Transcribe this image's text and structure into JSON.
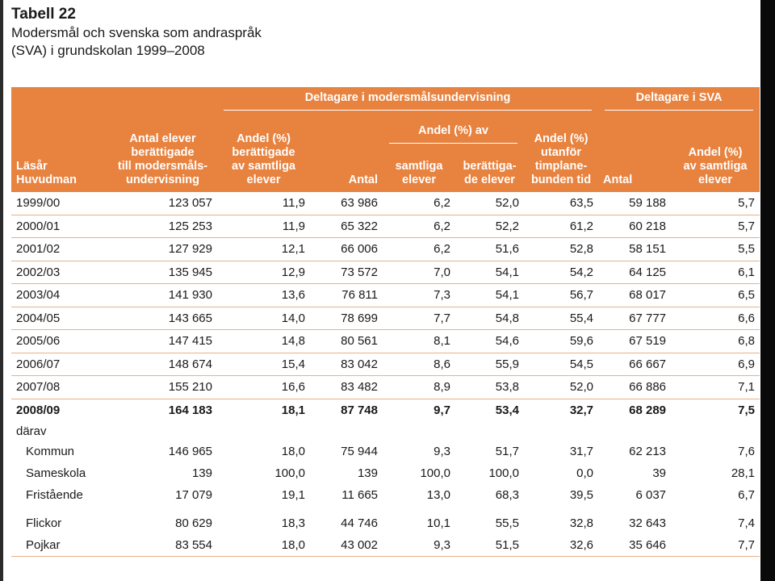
{
  "title": {
    "table_number": "Tabell 22",
    "line1": "Modersmål och svenska som andraspråk",
    "line2": "(SVA) i grundskolan 1999–2008"
  },
  "header": {
    "group_modersmal": "Deltagare i modersmålsundervisning",
    "group_sva": "Deltagare i SVA",
    "col_lasar": [
      "Läsår",
      "Huvudman"
    ],
    "col_antal_elever": [
      "Antal elever",
      "berättigade",
      "till modersmåls-",
      "undervisning"
    ],
    "col_andel_berattigade": [
      "Andel (%)",
      "berättigade",
      "av samtliga",
      "elever"
    ],
    "col_antal": "Antal",
    "sub_group_andel": "Andel (%) av",
    "col_samtliga": [
      "samtliga",
      "elever"
    ],
    "col_berattigade_elever": [
      "berättiga-",
      "de elever"
    ],
    "col_utanfor": [
      "Andel (%)",
      "utanför",
      "timplane-",
      "bunden tid"
    ],
    "col_sva_antal": "Antal",
    "col_sva_andel": [
      "Andel (%)",
      "av samtliga",
      "elever"
    ]
  },
  "rows": [
    [
      "1999/00",
      "123 057",
      "11,9",
      "63 986",
      "6,2",
      "52,0",
      "63,5",
      "59 188",
      "5,7"
    ],
    [
      "2000/01",
      "125 253",
      "11,9",
      "65 322",
      "6,2",
      "52,2",
      "61,2",
      "60 218",
      "5,7"
    ],
    [
      "2001/02",
      "127 929",
      "12,1",
      "66 006",
      "6,2",
      "51,6",
      "52,8",
      "58 151",
      "5,5"
    ],
    [
      "2002/03",
      "135 945",
      "12,9",
      "73 572",
      "7,0",
      "54,1",
      "54,2",
      "64 125",
      "6,1"
    ],
    [
      "2003/04",
      "141 930",
      "13,6",
      "76 811",
      "7,3",
      "54,1",
      "56,7",
      "68 017",
      "6,5"
    ],
    [
      "2004/05",
      "143 665",
      "14,0",
      "78 699",
      "7,7",
      "54,8",
      "55,4",
      "67 777",
      "6,6"
    ],
    [
      "2005/06",
      "147 415",
      "14,8",
      "80 561",
      "8,1",
      "54,6",
      "59,6",
      "67 519",
      "6,8"
    ],
    [
      "2006/07",
      "148 674",
      "15,4",
      "83 042",
      "8,6",
      "55,9",
      "54,5",
      "66 667",
      "6,9"
    ],
    [
      "2007/08",
      "155 210",
      "16,6",
      "83 482",
      "8,9",
      "53,8",
      "52,0",
      "66 886",
      "7,1"
    ]
  ],
  "total_row": [
    "2008/09",
    "164 183",
    "18,1",
    "87 748",
    "9,7",
    "53,4",
    "32,7",
    "68 289",
    "7,5"
  ],
  "darav_label": "därav",
  "sub_rows_a": [
    [
      "Kommun",
      "146 965",
      "18,0",
      "75 944",
      "9,3",
      "51,7",
      "31,7",
      "62 213",
      "7,6"
    ],
    [
      "Sameskola",
      "139",
      "100,0",
      "139",
      "100,0",
      "100,0",
      "0,0",
      "39",
      "28,1"
    ],
    [
      "Fristående",
      "17 079",
      "19,1",
      "11 665",
      "13,0",
      "68,3",
      "39,5",
      "6 037",
      "6,7"
    ]
  ],
  "sub_rows_b": [
    [
      "Flickor",
      "80 629",
      "18,3",
      "44 746",
      "10,1",
      "55,5",
      "32,8",
      "32 643",
      "7,4"
    ],
    [
      "Pojkar",
      "83 554",
      "18,0",
      "43 002",
      "9,3",
      "51,5",
      "32,6",
      "35 646",
      "7,7"
    ]
  ]
}
